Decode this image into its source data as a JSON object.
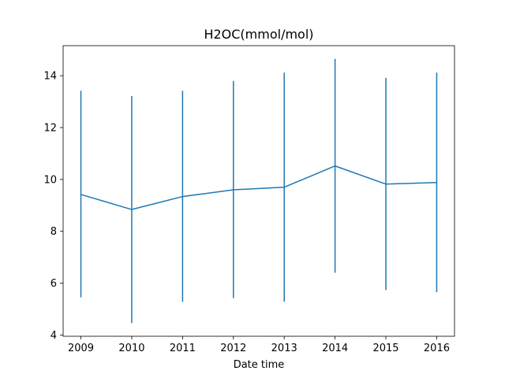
{
  "chart_data": {
    "type": "line",
    "title": "H2OC(mmol/mol)",
    "xlabel": "Date time",
    "ylabel": "",
    "x": [
      "2009",
      "2010",
      "2011",
      "2012",
      "2013",
      "2014",
      "2015",
      "2016"
    ],
    "series": [
      {
        "values": [
          9.42,
          8.84,
          9.34,
          9.6,
          9.7,
          10.52,
          9.82,
          9.88
        ],
        "err_low": [
          5.45,
          4.46,
          5.28,
          5.42,
          5.28,
          6.4,
          5.73,
          5.65
        ],
        "err_high": [
          13.42,
          13.22,
          13.42,
          13.8,
          14.12,
          14.65,
          13.92,
          14.12
        ],
        "color": "#1f77b4"
      }
    ],
    "yticks": [
      4,
      6,
      8,
      10,
      12,
      14
    ],
    "ylim": [
      3.95,
      15.16
    ],
    "xlim": [
      -0.35,
      7.35
    ],
    "grid": false,
    "legend": "none"
  }
}
